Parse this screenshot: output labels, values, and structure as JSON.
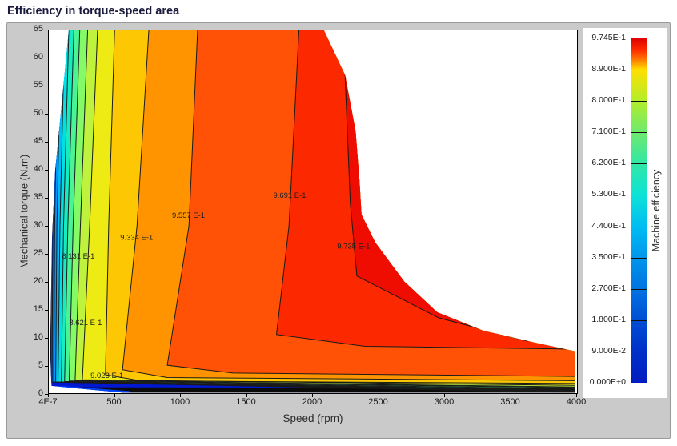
{
  "header": {
    "title": "Efficiency in torque-speed area"
  },
  "chart_data": {
    "type": "contour",
    "title": "Efficiency in torque-speed area",
    "xlabel": "Speed (rpm)",
    "ylabel": "Mechanical torque (N.m)",
    "x_range": [
      0,
      4000
    ],
    "y_range": [
      0,
      65
    ],
    "x_ticks": [
      {
        "label": "4E-7",
        "value": 0
      },
      {
        "label": "500",
        "value": 500
      },
      {
        "label": "1000",
        "value": 1000
      },
      {
        "label": "1500",
        "value": 1500
      },
      {
        "label": "2000",
        "value": 2000
      },
      {
        "label": "2500",
        "value": 2500
      },
      {
        "label": "3000",
        "value": 3000
      },
      {
        "label": "3500",
        "value": 3500
      },
      {
        "label": "4000",
        "value": 4000
      }
    ],
    "y_ticks": [
      {
        "label": "0",
        "value": 0
      },
      {
        "label": "5",
        "value": 5
      },
      {
        "label": "10",
        "value": 10
      },
      {
        "label": "15",
        "value": 15
      },
      {
        "label": "20",
        "value": 20
      },
      {
        "label": "25",
        "value": 25
      },
      {
        "label": "30",
        "value": 30
      },
      {
        "label": "35",
        "value": 35
      },
      {
        "label": "40",
        "value": 40
      },
      {
        "label": "45",
        "value": 45
      },
      {
        "label": "50",
        "value": 50
      },
      {
        "label": "55",
        "value": 55
      },
      {
        "label": "60",
        "value": 60
      },
      {
        "label": "65",
        "value": 65
      }
    ],
    "colorbar": {
      "title": "Machine efficiency",
      "ticks": [
        "9.745E-1",
        "8.900E-1",
        "8.000E-1",
        "7.100E-1",
        "6.200E-1",
        "5.300E-1",
        "4.400E-1",
        "3.500E-1",
        "2.700E-1",
        "1.800E-1",
        "9.000E-2",
        "0.000E+0"
      ],
      "gradient": [
        {
          "pos": 0,
          "color": "#df0000"
        },
        {
          "pos": 3.5,
          "color": "#ff2d00"
        },
        {
          "pos": 6.5,
          "color": "#ff8400"
        },
        {
          "pos": 9.1,
          "color": "#ffdf00"
        },
        {
          "pos": 18.1,
          "color": "#b2ee2b"
        },
        {
          "pos": 27.2,
          "color": "#6fe96e"
        },
        {
          "pos": 36.3,
          "color": "#30e8a4"
        },
        {
          "pos": 45.6,
          "color": "#0de2d8"
        },
        {
          "pos": 54.7,
          "color": "#00bdf2"
        },
        {
          "pos": 63.7,
          "color": "#0096ec"
        },
        {
          "pos": 72.8,
          "color": "#0073e0"
        },
        {
          "pos": 81.9,
          "color": "#004ed4"
        },
        {
          "pos": 90.9,
          "color": "#0030c8"
        },
        {
          "pos": 100,
          "color": "#001cc0"
        }
      ]
    },
    "base_color": "#0018cf",
    "line_color": "#1a1a1a",
    "domain": [
      [
        152,
        65
      ],
      [
        48,
        39.6
      ],
      [
        24,
        27.7
      ],
      [
        10,
        7.5
      ],
      [
        20,
        1.3
      ],
      [
        560,
        0.08
      ],
      [
        4000,
        0.08
      ],
      [
        4000,
        7.5
      ],
      [
        3700,
        9.0
      ],
      [
        3300,
        11.2
      ],
      [
        2950,
        14.5
      ],
      [
        2700,
        20
      ],
      [
        2480,
        27
      ],
      [
        2375,
        32
      ],
      [
        2360,
        38
      ],
      [
        2330,
        47
      ],
      [
        2250,
        57
      ],
      [
        2090,
        65
      ]
    ],
    "contours": [
      {
        "value": "",
        "color": "#0040ff",
        "points": [
          [
            30,
            65
          ],
          [
            17,
            30
          ],
          [
            14,
            2.0
          ],
          [
            4000,
            0.1
          ]
        ]
      },
      {
        "value": "",
        "color": "#0068ff",
        "points": [
          [
            48,
            65
          ],
          [
            30,
            30
          ],
          [
            25,
            2.0
          ],
          [
            4000,
            0.2
          ]
        ]
      },
      {
        "value": "",
        "color": "#0094ff",
        "points": [
          [
            68,
            65
          ],
          [
            45,
            30
          ],
          [
            38,
            2.0
          ],
          [
            4000,
            0.3
          ]
        ]
      },
      {
        "value": "",
        "color": "#00bcfa",
        "points": [
          [
            92,
            65
          ],
          [
            62,
            30
          ],
          [
            52,
            2.0
          ],
          [
            4000,
            0.4
          ]
        ]
      },
      {
        "value": "",
        "color": "#00e0e4",
        "points": [
          [
            120,
            65
          ],
          [
            85,
            30
          ],
          [
            70,
            2.0
          ],
          [
            4000,
            0.52
          ]
        ]
      },
      {
        "value": "",
        "color": "#16ecc0",
        "points": [
          [
            152,
            65
          ],
          [
            112,
            30
          ],
          [
            95,
            2.0
          ],
          [
            4000,
            0.64
          ]
        ]
      },
      {
        "value": "",
        "color": "#48f494",
        "points": [
          [
            190,
            65
          ],
          [
            145,
            30
          ],
          [
            120,
            2.1
          ],
          [
            4000,
            0.8
          ]
        ]
      },
      {
        "value": "",
        "color": "#84fa66",
        "points": [
          [
            235,
            65
          ],
          [
            185,
            30
          ],
          [
            155,
            2.2
          ],
          [
            4000,
            0.98
          ]
        ]
      },
      {
        "value": "8.131 E-1",
        "color": "#bef23c",
        "points": [
          [
            295,
            65
          ],
          [
            240,
            30
          ],
          [
            200,
            2.3
          ],
          [
            4000,
            1.12
          ]
        ]
      },
      {
        "value": "8.621 E-1",
        "color": "#eeea14",
        "points": [
          [
            370,
            65
          ],
          [
            310,
            30
          ],
          [
            255,
            2.4
          ],
          [
            4000,
            1.4
          ]
        ]
      },
      {
        "value": "9.023 E-1",
        "color": "#fdc704",
        "points": [
          [
            500,
            65
          ],
          [
            455,
            30
          ],
          [
            430,
            3.3
          ],
          [
            700,
            2.2
          ],
          [
            4000,
            1.75
          ]
        ]
      },
      {
        "value": "9.334 E-1",
        "color": "#ff9400",
        "points": [
          [
            760,
            65
          ],
          [
            670,
            30
          ],
          [
            560,
            4.2
          ],
          [
            900,
            2.8
          ],
          [
            4000,
            2.25
          ]
        ]
      },
      {
        "value": "9.557 E-1",
        "color": "#ff5207",
        "points": [
          [
            1130,
            65
          ],
          [
            1065,
            30
          ],
          [
            900,
            5.0
          ],
          [
            1400,
            3.6
          ],
          [
            4000,
            3.0
          ]
        ]
      },
      {
        "value": "9.691 E-1",
        "color": "#fb2800",
        "points": [
          [
            1900,
            65
          ],
          [
            1825,
            30
          ],
          [
            1730,
            10.5
          ],
          [
            2400,
            8.4
          ],
          [
            4000,
            7.9
          ]
        ]
      },
      {
        "value": "9.735 E-1",
        "color": "#ee0d00",
        "points": [
          [
            2250,
            57
          ],
          [
            2290,
            34
          ],
          [
            2340,
            21
          ],
          [
            2960,
            13.5
          ],
          [
            3640,
            9.3
          ]
        ]
      }
    ],
    "contour_labels": [
      {
        "text": "8.131 E-1",
        "rpm": 224,
        "t": 24.6
      },
      {
        "text": "8.621 E-1",
        "rpm": 279,
        "t": 12.7
      },
      {
        "text": "9.023 E-1",
        "rpm": 442,
        "t": 3.2
      },
      {
        "text": "9.334 E-1",
        "rpm": 667,
        "t": 28.0
      },
      {
        "text": "9.557 E-1",
        "rpm": 1061,
        "t": 31.9
      },
      {
        "text": "9.691 E-1",
        "rpm": 1830,
        "t": 35.5
      },
      {
        "text": "9.735 E-1",
        "rpm": 2315,
        "t": 26.4
      }
    ],
    "extras": {
      "black_band": [
        [
          150,
          1.05
        ],
        [
          4000,
          0.9
        ],
        [
          4000,
          0.0
        ],
        [
          900,
          0.0
        ],
        [
          560,
          0.08
        ],
        [
          150,
          0.7
        ]
      ],
      "black_band_color": "#0b0b0b",
      "blue_sliver": [
        [
          80,
          1.15
        ],
        [
          620,
          0.18
        ]
      ],
      "blue_sliver_color": "#0043ff"
    }
  }
}
